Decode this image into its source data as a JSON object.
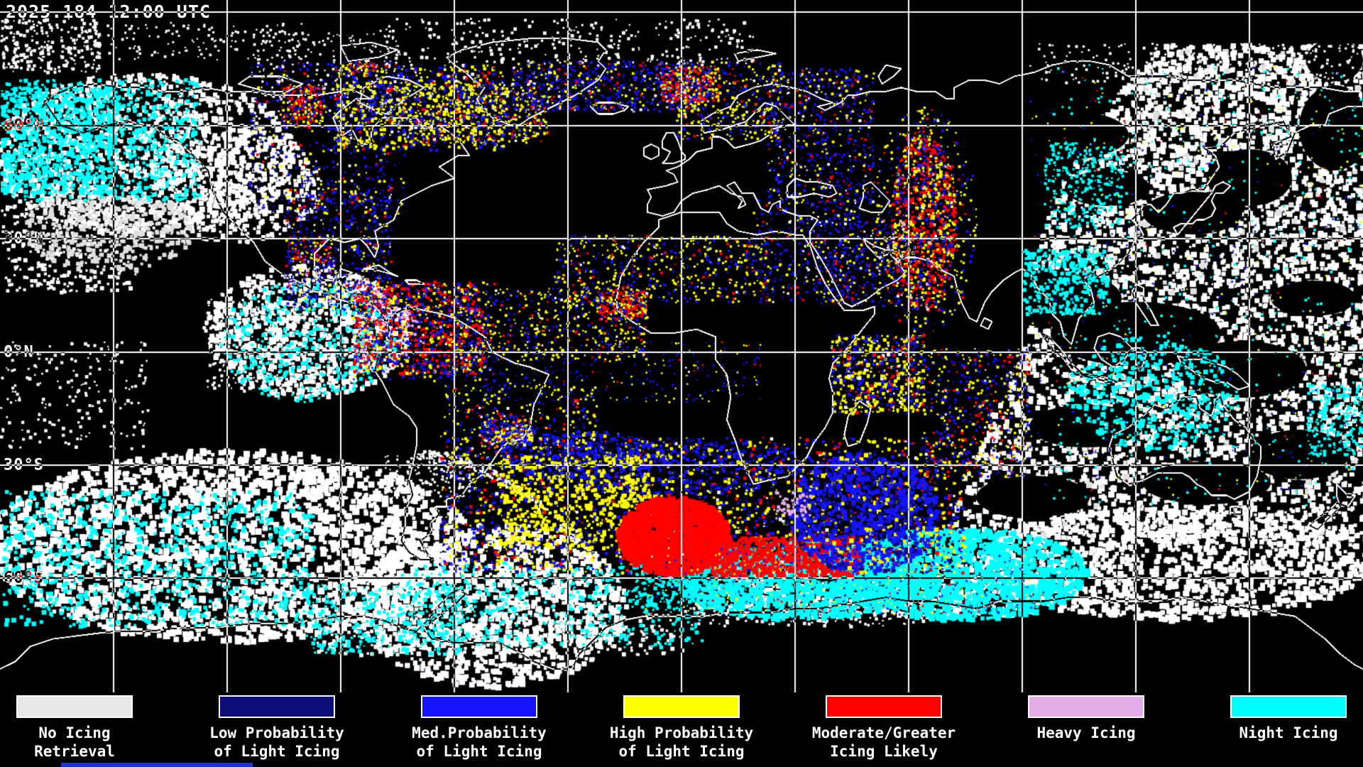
{
  "header": {
    "timestamp": "2025.184 12:00 UTC"
  },
  "map": {
    "latitude_labels": [
      "60°N",
      "30°N",
      "0°N",
      "30°S",
      "60°S"
    ],
    "grid_longitude_spacing_deg": 30,
    "grid_latitude_spacing_deg": 30
  },
  "colors": {
    "background": "#000000",
    "annotation_light": "#FFFFFF",
    "annotation_dark": "#000000",
    "cloud_white": "#FFFFFF",
    "cloud_gray": "#E0E0E0",
    "partial_bar_blue": "#2233CC"
  },
  "legend": {
    "items": [
      {
        "color": "#E8E8E8",
        "line1": "No Icing",
        "line2": "Retrieval"
      },
      {
        "color": "#0D0D78",
        "line1": "Low Probability",
        "line2": "of Light Icing"
      },
      {
        "color": "#1414FF",
        "line1": "Med.Probability",
        "line2": "of Light Icing"
      },
      {
        "color": "#FFFF00",
        "line1": "High Probability",
        "line2": "of Light Icing"
      },
      {
        "color": "#FF0000",
        "line1": "Moderate/Greater",
        "line2": "Icing Likely"
      },
      {
        "color": "#E6AEE8",
        "line1": "Heavy Icing",
        "line2": ""
      },
      {
        "color": "#00FFFF",
        "line1": "Night Icing",
        "line2": ""
      }
    ]
  }
}
